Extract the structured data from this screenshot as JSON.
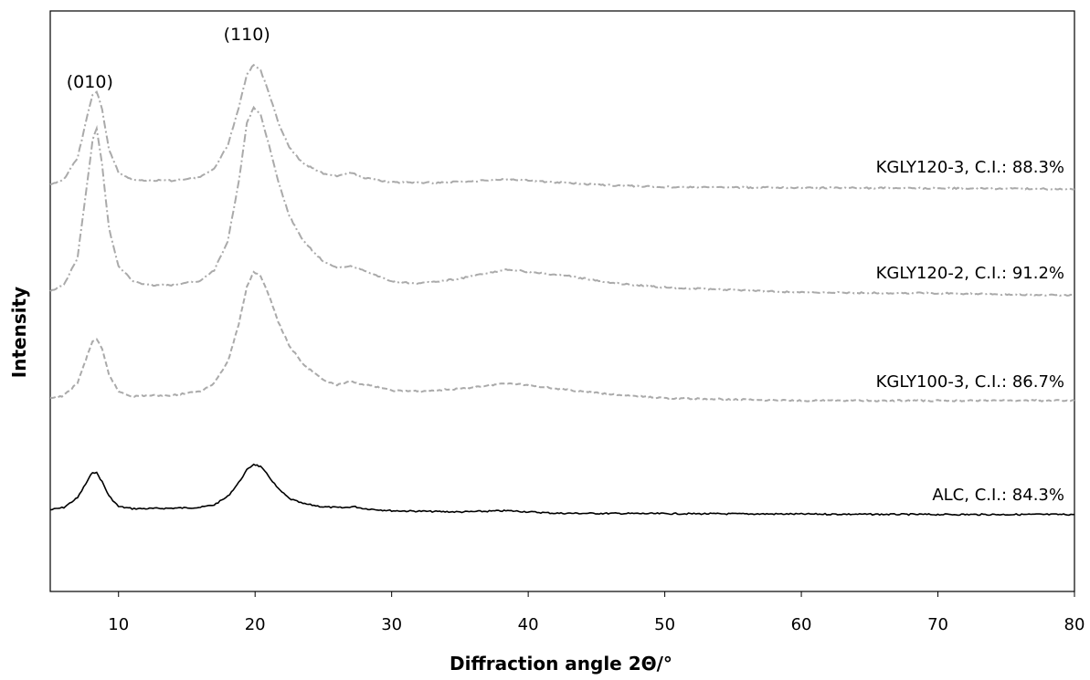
{
  "chart_data": {
    "type": "line",
    "xlabel": "Diffraction angle 2Θ/°",
    "ylabel": "Intensity",
    "xlim": [
      5,
      80
    ],
    "xticks": [
      10,
      20,
      30,
      40,
      50,
      60,
      70,
      80
    ],
    "grid": false,
    "legend": "inline labels at right end of each curve",
    "annotations": [
      {
        "text": "(010)",
        "x": 8.3
      },
      {
        "text": "(110)",
        "x": 19.8
      }
    ],
    "series": [
      {
        "name": "ALC, C.I.: 84.3%",
        "color": "#000000",
        "dash": "solid",
        "x": [
          5,
          6,
          7,
          7.6,
          8.1,
          8.4,
          8.8,
          9.3,
          10,
          11,
          12,
          14,
          16,
          17,
          18,
          18.8,
          19.4,
          19.9,
          20.4,
          21,
          21.7,
          22.5,
          23.5,
          25,
          26.5,
          27.2,
          28,
          30,
          35,
          38.5,
          42,
          50,
          60,
          70,
          80
        ],
        "y": [
          0.3,
          0.9,
          3.2,
          6.5,
          9.3,
          9.1,
          7.0,
          3.6,
          1.1,
          0.6,
          0.6,
          0.7,
          0.9,
          1.5,
          3.5,
          6.8,
          9.8,
          11.2,
          10.6,
          8.3,
          5.3,
          3.0,
          1.8,
          1.0,
          0.8,
          1.1,
          0.6,
          0.1,
          -0.2,
          0.1,
          -0.5,
          -0.6,
          -0.7,
          -0.8,
          -0.8
        ]
      },
      {
        "name": "KGLY100-3, C.I.: 86.7%",
        "color": "#aaaaaa",
        "dash": "dashed",
        "x": [
          5,
          6,
          7,
          7.6,
          8.1,
          8.4,
          8.8,
          9.3,
          10,
          11,
          12,
          14,
          16,
          17,
          18,
          18.8,
          19.4,
          19.9,
          20.4,
          21,
          21.7,
          22.5,
          23.5,
          25,
          26,
          27,
          28,
          29,
          30,
          32,
          35,
          38.5,
          41,
          43,
          46,
          50,
          60,
          70,
          80
        ],
        "y": [
          0.3,
          1.0,
          4.0,
          9.5,
          14.0,
          14.4,
          12.0,
          6.0,
          2.0,
          0.8,
          1.0,
          1.1,
          2.0,
          4.0,
          9.0,
          18.0,
          27.0,
          30.5,
          29.5,
          25.0,
          18.5,
          13.0,
          8.5,
          4.6,
          3.5,
          4.3,
          3.6,
          3.0,
          2.2,
          2.0,
          2.6,
          4.0,
          3.1,
          2.3,
          1.3,
          0.4,
          -0.2,
          -0.2,
          -0.2
        ]
      },
      {
        "name": "KGLY120-2, C.I.: 91.2%",
        "color": "#aaaaaa",
        "dash": "dashdot",
        "x": [
          5,
          6,
          7,
          7.6,
          8.1,
          8.4,
          8.8,
          9.3,
          10,
          11,
          12,
          14,
          16,
          17,
          18,
          18.8,
          19.4,
          19.9,
          20.4,
          21,
          21.7,
          22.5,
          23.5,
          25,
          26,
          27,
          28,
          29,
          30,
          32,
          35,
          38.5,
          40,
          43,
          46,
          50,
          60,
          70,
          80
        ],
        "y": [
          0.0,
          1.5,
          8.0,
          23.0,
          36.0,
          38.8,
          30.0,
          15.0,
          6.0,
          2.5,
          1.5,
          1.4,
          2.5,
          5.0,
          12.0,
          26.0,
          40.0,
          43.8,
          42.0,
          35.0,
          26.0,
          18.0,
          12.0,
          7.0,
          5.5,
          6.0,
          5.0,
          3.5,
          2.3,
          1.8,
          3.0,
          5.2,
          4.6,
          3.6,
          2.0,
          0.9,
          -0.3,
          -0.5,
          -1.0
        ]
      },
      {
        "name": "KGLY120-3, C.I.: 88.3%",
        "color": "#aaaaaa",
        "dash": "dashdot",
        "x": [
          5,
          6,
          7,
          7.6,
          8.1,
          8.4,
          8.8,
          9.3,
          10,
          11,
          12,
          14,
          16,
          17,
          18,
          18.8,
          19.4,
          19.9,
          20.4,
          21,
          21.7,
          22.5,
          23.5,
          25,
          26,
          27,
          28,
          30,
          33,
          36,
          38.5,
          42,
          46,
          50,
          60,
          70,
          80
        ],
        "y": [
          0.0,
          1.5,
          6.5,
          15.0,
          21.5,
          22.4,
          18.0,
          8.5,
          3.0,
          1.3,
          1.2,
          1.1,
          2.0,
          4.0,
          9.5,
          18.5,
          26.5,
          28.7,
          27.5,
          22.0,
          15.0,
          9.0,
          5.2,
          2.8,
          2.2,
          3.0,
          1.8,
          0.7,
          0.6,
          1.0,
          1.5,
          0.7,
          0.0,
          -0.4,
          -0.6,
          -0.7,
          -0.9
        ]
      }
    ]
  }
}
